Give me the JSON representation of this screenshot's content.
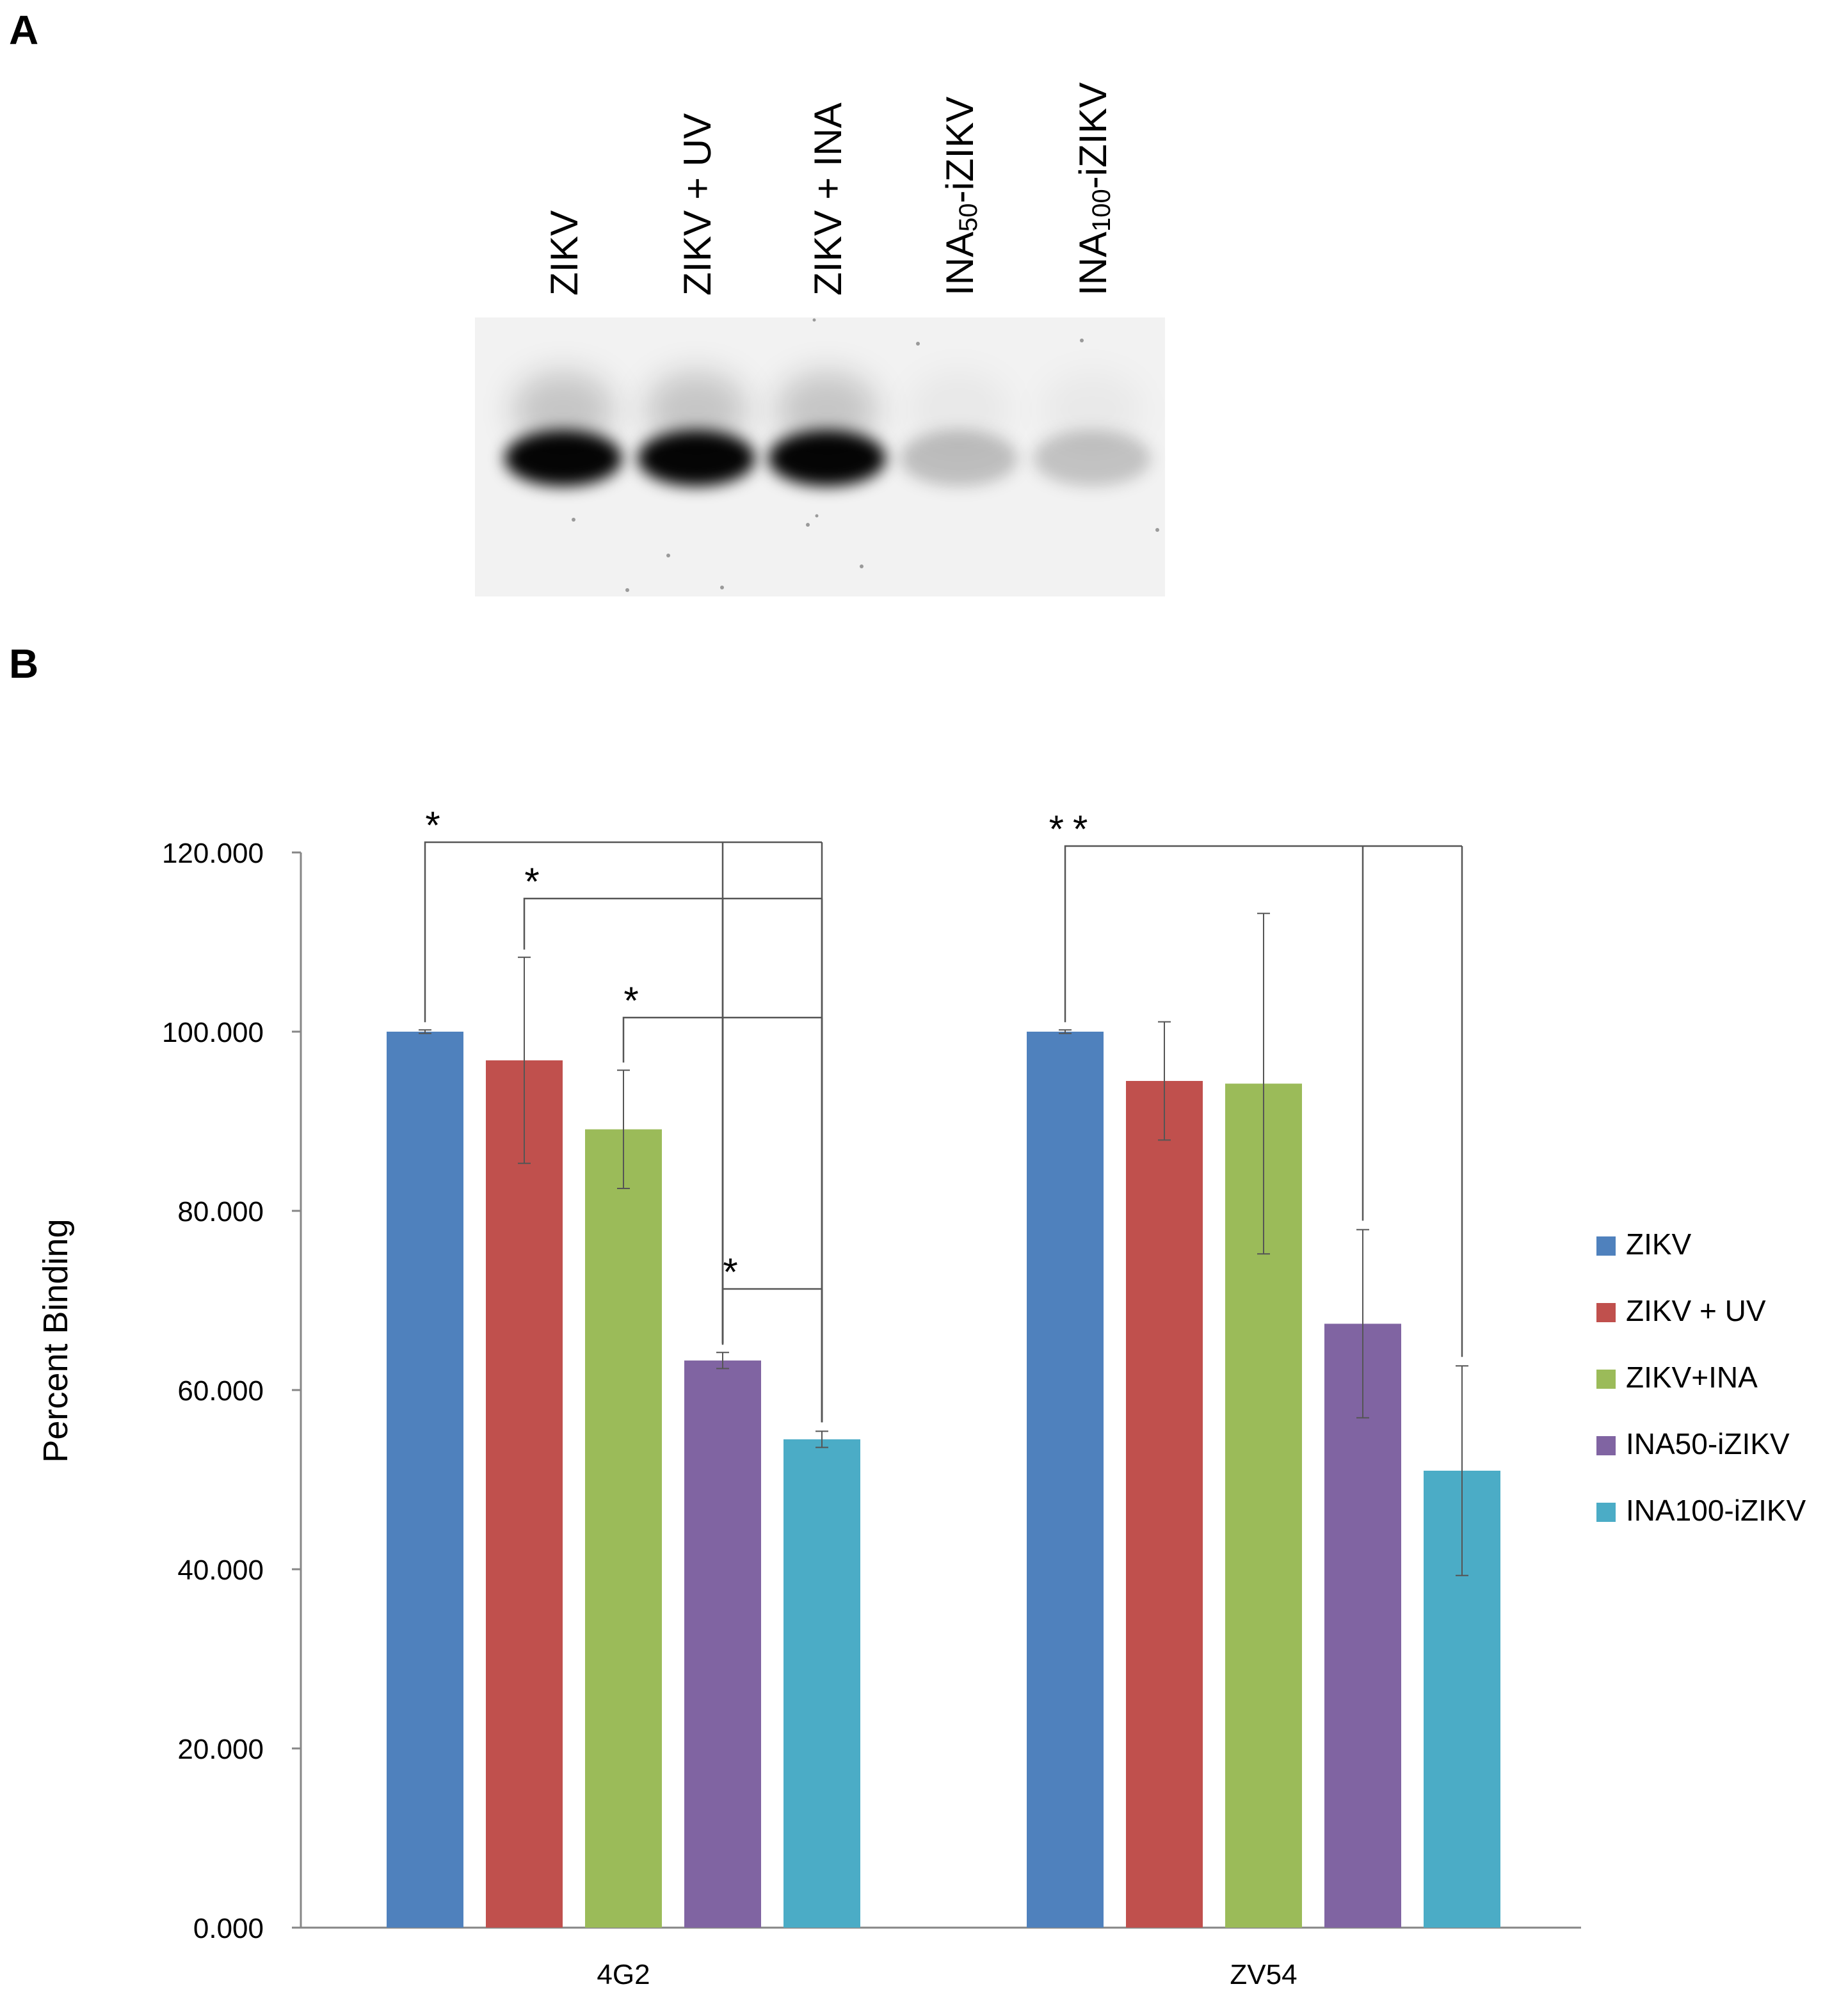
{
  "panels": {
    "a": "A",
    "b": "B"
  },
  "western_blot": {
    "lanes": [
      {
        "label": "ZIKV",
        "label_main": "ZIKV",
        "label_sub": "",
        "label_tail": "",
        "band_intensity": 1.0
      },
      {
        "label": "ZIKV + UV",
        "label_main": "ZIKV + UV",
        "label_sub": "",
        "label_tail": "",
        "band_intensity": 1.0
      },
      {
        "label": "ZIKV + INA",
        "label_main": "ZIKV + INA",
        "label_sub": "",
        "label_tail": "",
        "band_intensity": 1.0
      },
      {
        "label": "INA50-iZIKV",
        "label_main": "INA",
        "label_sub": "50",
        "label_tail": "-iZIKV",
        "band_intensity": 0.22
      },
      {
        "label": "INA100-iZIKV",
        "label_main": "INA",
        "label_sub": "100",
        "label_tail": "-iZIKV",
        "band_intensity": 0.2
      }
    ]
  },
  "colors": {
    "ZIKV": "#4F81BD",
    "ZIKV + UV": "#C0504D",
    "ZIKV+INA": "#9BBB59",
    "INA50-iZIKV": "#8064A2",
    "INA100-iZIKV": "#4BACC6"
  },
  "chart_data": {
    "type": "bar",
    "title": "",
    "xlabel": "",
    "ylabel": "Percent Binding",
    "ylim": [
      0,
      120
    ],
    "yticks": [
      "0.000",
      "20.000",
      "40.000",
      "60.000",
      "80.000",
      "100.000",
      "120.000"
    ],
    "grid": false,
    "legend_position": "right",
    "categories": [
      "4G2",
      "ZV54"
    ],
    "series": [
      {
        "name": "ZIKV",
        "values": [
          100.0,
          100.0
        ],
        "errors": [
          0.2,
          0.2
        ]
      },
      {
        "name": "ZIKV + UV",
        "values": [
          96.8,
          94.5
        ],
        "errors": [
          11.5,
          6.6
        ]
      },
      {
        "name": "ZIKV+INA",
        "values": [
          89.1,
          94.2
        ],
        "errors": [
          6.6,
          19.0
        ]
      },
      {
        "name": "INA50-iZIKV",
        "values": [
          63.3,
          67.4
        ],
        "errors": [
          0.9,
          10.5
        ]
      },
      {
        "name": "INA100-iZIKV",
        "values": [
          54.5,
          51.0
        ],
        "errors": [
          0.9,
          11.7
        ]
      }
    ],
    "significance": [
      {
        "category": "4G2",
        "from_series": 0,
        "to_series": [
          3,
          4
        ],
        "label": "*"
      },
      {
        "category": "4G2",
        "from_series": 1,
        "to_series": [
          3,
          4
        ],
        "label": "*"
      },
      {
        "category": "4G2",
        "from_series": 2,
        "to_series": [
          3,
          4
        ],
        "label": "*"
      },
      {
        "category": "4G2",
        "from_series": 3,
        "to_series": [
          4
        ],
        "label": "*"
      },
      {
        "category": "ZV54",
        "from_series": 0,
        "to_series": [
          3,
          4
        ],
        "label": "**"
      }
    ]
  }
}
